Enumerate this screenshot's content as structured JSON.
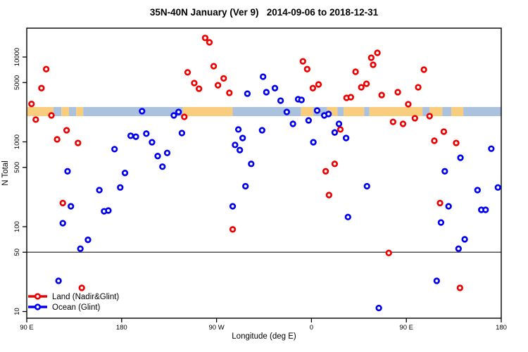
{
  "chart_data": {
    "type": "scatter",
    "title": "35N-40N January (Ver 9)   2014-09-06 to 2018-12-31",
    "xlabel": "Longitude (deg E)",
    "ylabel": "N Total",
    "y_scale": "log",
    "ylim": [
      9,
      17500
    ],
    "grid": "off",
    "reference_line_y": 50,
    "x_ticks": [
      {
        "pos": 0.0,
        "label": "90 E"
      },
      {
        "pos": 0.2,
        "label": "180"
      },
      {
        "pos": 0.4,
        "label": "90 W"
      },
      {
        "pos": 0.6,
        "label": "0"
      },
      {
        "pos": 0.8,
        "label": "90 E"
      },
      {
        "pos": 1.0,
        "label": "180"
      }
    ],
    "y_ticks": [
      {
        "value": 10,
        "label": "10"
      },
      {
        "value": 50,
        "label": "50"
      },
      {
        "value": 100,
        "label": "100"
      },
      {
        "value": 500,
        "label": "500"
      },
      {
        "value": 1000,
        "label": "1000"
      },
      {
        "value": 5000,
        "label": "5000"
      },
      {
        "value": 10000,
        "label": "10000"
      }
    ],
    "legend": {
      "position": "bottom-left",
      "entries": [
        {
          "name": "Land (Nadir&Glint)",
          "color": "#EE0000"
        },
        {
          "name": "Ocean (Glint)",
          "color": "#0000EE"
        }
      ]
    },
    "land_ocean_band": {
      "n_value": 2200,
      "land_color": "#F8CE7E",
      "ocean_color": "#AAC2DE",
      "segments": [
        [
          "land",
          0.0,
          0.056
        ],
        [
          "ocean",
          0.056,
          0.073
        ],
        [
          "land",
          0.073,
          0.089
        ],
        [
          "ocean",
          0.089,
          0.104
        ],
        [
          "land",
          0.104,
          0.119
        ],
        [
          "ocean",
          0.119,
          0.329
        ],
        [
          "land",
          0.329,
          0.434
        ],
        [
          "ocean",
          0.434,
          0.578
        ],
        [
          "land",
          0.578,
          0.604
        ],
        [
          "ocean",
          0.604,
          0.633
        ],
        [
          "land",
          0.633,
          0.655
        ],
        [
          "ocean",
          0.655,
          0.668
        ],
        [
          "land",
          0.668,
          0.711
        ],
        [
          "ocean",
          0.711,
          0.722
        ],
        [
          "land",
          0.722,
          0.834
        ],
        [
          "ocean",
          0.834,
          0.849
        ],
        [
          "land",
          0.849,
          0.876
        ],
        [
          "ocean",
          0.876,
          0.895
        ],
        [
          "land",
          0.895,
          0.92
        ],
        [
          "ocean",
          0.92,
          1.0
        ]
      ]
    },
    "series": [
      {
        "name": "Land (Nadir&Glint)",
        "color": "#EE0000",
        "points": [
          [
            0.01,
            2800
          ],
          [
            0.019,
            1830
          ],
          [
            0.031,
            4300
          ],
          [
            0.041,
            7200
          ],
          [
            0.052,
            2050
          ],
          [
            0.064,
            1070
          ],
          [
            0.076,
            190
          ],
          [
            0.084,
            1370
          ],
          [
            0.108,
            970
          ],
          [
            0.116,
            19
          ],
          [
            0.332,
            1970
          ],
          [
            0.339,
            6600
          ],
          [
            0.353,
            4930
          ],
          [
            0.363,
            4230
          ],
          [
            0.376,
            16800
          ],
          [
            0.385,
            14900
          ],
          [
            0.394,
            7800
          ],
          [
            0.403,
            4650
          ],
          [
            0.415,
            5600
          ],
          [
            0.427,
            3780
          ],
          [
            0.434,
            93
          ],
          [
            0.582,
            8900
          ],
          [
            0.591,
            7200
          ],
          [
            0.603,
            4300
          ],
          [
            0.615,
            4750
          ],
          [
            0.63,
            450
          ],
          [
            0.637,
            236
          ],
          [
            0.649,
            550
          ],
          [
            0.661,
            1400
          ],
          [
            0.674,
            3300
          ],
          [
            0.683,
            3360
          ],
          [
            0.693,
            6700
          ],
          [
            0.705,
            4400
          ],
          [
            0.716,
            4840
          ],
          [
            0.726,
            9800
          ],
          [
            0.73,
            8100
          ],
          [
            0.739,
            11200
          ],
          [
            0.748,
            3560
          ],
          [
            0.763,
            49
          ],
          [
            0.772,
            1720
          ],
          [
            0.782,
            3850
          ],
          [
            0.793,
            1630
          ],
          [
            0.804,
            2780
          ],
          [
            0.818,
            1900
          ],
          [
            0.825,
            4400
          ],
          [
            0.837,
            7100
          ],
          [
            0.849,
            2010
          ],
          [
            0.859,
            1030
          ],
          [
            0.871,
            190
          ],
          [
            0.879,
            1320
          ],
          [
            0.905,
            970
          ],
          [
            0.913,
            19
          ]
        ]
      },
      {
        "name": "Ocean (Glint)",
        "color": "#0000EE",
        "points": [
          [
            0.067,
            23
          ],
          [
            0.076,
            110
          ],
          [
            0.086,
            450
          ],
          [
            0.093,
            174
          ],
          [
            0.113,
            55
          ],
          [
            0.129,
            70
          ],
          [
            0.153,
            270
          ],
          [
            0.163,
            152
          ],
          [
            0.172,
            155
          ],
          [
            0.185,
            820
          ],
          [
            0.197,
            290
          ],
          [
            0.207,
            430
          ],
          [
            0.219,
            1180
          ],
          [
            0.23,
            1150
          ],
          [
            0.243,
            2300
          ],
          [
            0.252,
            1250
          ],
          [
            0.264,
            990
          ],
          [
            0.276,
            680
          ],
          [
            0.286,
            510
          ],
          [
            0.296,
            740
          ],
          [
            0.31,
            2050
          ],
          [
            0.32,
            2250
          ],
          [
            0.327,
            1270
          ],
          [
            0.434,
            174
          ],
          [
            0.439,
            920
          ],
          [
            0.446,
            1400
          ],
          [
            0.449,
            800
          ],
          [
            0.455,
            1110
          ],
          [
            0.461,
            300
          ],
          [
            0.465,
            3700
          ],
          [
            0.473,
            550
          ],
          [
            0.496,
            1370
          ],
          [
            0.498,
            5860
          ],
          [
            0.505,
            3850
          ],
          [
            0.523,
            4300
          ],
          [
            0.535,
            3060
          ],
          [
            0.548,
            2250
          ],
          [
            0.561,
            1630
          ],
          [
            0.572,
            3180
          ],
          [
            0.579,
            3120
          ],
          [
            0.594,
            1790
          ],
          [
            0.604,
            990
          ],
          [
            0.612,
            2340
          ],
          [
            0.627,
            2050
          ],
          [
            0.636,
            2130
          ],
          [
            0.649,
            1290
          ],
          [
            0.658,
            1630
          ],
          [
            0.673,
            1110
          ],
          [
            0.677,
            130
          ],
          [
            0.717,
            300
          ],
          [
            0.742,
            11
          ],
          [
            0.864,
            23
          ],
          [
            0.873,
            112
          ],
          [
            0.881,
            450
          ],
          [
            0.889,
            174
          ],
          [
            0.91,
            55
          ],
          [
            0.914,
            650
          ],
          [
            0.923,
            71
          ],
          [
            0.95,
            270
          ],
          [
            0.958,
            158
          ],
          [
            0.967,
            158
          ],
          [
            0.979,
            830
          ],
          [
            0.993,
            290
          ]
        ]
      }
    ]
  }
}
